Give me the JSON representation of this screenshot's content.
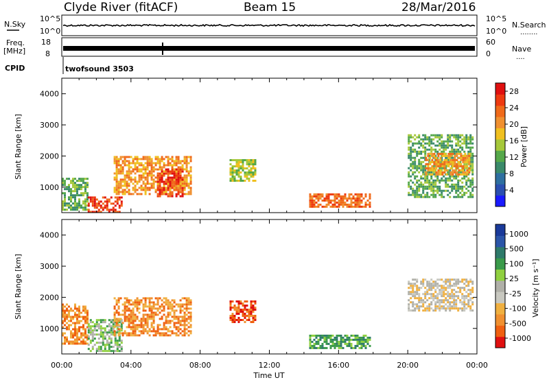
{
  "header": {
    "station": "Clyde River (fitACF)",
    "beam": "Beam 15",
    "date": "28/Mar/2016"
  },
  "strips": {
    "nsky_label": "N.Sky",
    "nsearch_label": "N.Search",
    "nsearch_dots": "........",
    "nsky_ticks": [
      "10^5",
      "10^0"
    ],
    "nsearch_ticks": [
      "10^5",
      "10^0"
    ],
    "freq_label_1": "Freq.",
    "freq_label_2": "[MHz]",
    "freq_ticks": [
      "18",
      "8"
    ],
    "nave_label": "Nave",
    "nave_dots": "....",
    "nave_ticks": [
      "60",
      "0"
    ],
    "cpid_label": "CPID",
    "cpid_value": "twofsound 3503"
  },
  "colors": {
    "power_scale": [
      "#1a1aff",
      "#2b4fb0",
      "#2e6fa0",
      "#3a8a6a",
      "#55a84a",
      "#a6c83a",
      "#f0c020",
      "#f09030",
      "#f06a1a",
      "#ee3a10",
      "#e01010"
    ],
    "velocity_scale": [
      "#e01010",
      "#f06010",
      "#f09030",
      "#f0b040",
      "#c8c8c0",
      "#b0b0a8",
      "#90d040",
      "#3a9a4a",
      "#2e7a6a",
      "#2b55a8",
      "#1a3a9a"
    ]
  },
  "chart_data": [
    {
      "type": "heatmap",
      "title": "",
      "xlabel": "Time UT",
      "ylabel": "Slant Range [km]",
      "xlim": [
        "00:00",
        "24:00"
      ],
      "ylim": [
        180,
        4500
      ],
      "x_ticks": [
        "00:00",
        "04:00",
        "08:00",
        "12:00",
        "16:00",
        "20:00",
        "00:00"
      ],
      "y_ticks": [
        "1000",
        "2000",
        "3000",
        "4000"
      ],
      "colorbar": {
        "label": "Power [dB]",
        "ticks": [
          "4",
          "8",
          "12",
          "16",
          "20",
          "24",
          "28"
        ],
        "range": [
          0,
          30
        ]
      },
      "regions": [
        {
          "t0": 0.0,
          "t1": 1.5,
          "r0": 300,
          "r1": 1300,
          "value": 12
        },
        {
          "t0": 1.5,
          "t1": 3.5,
          "r0": 200,
          "r1": 700,
          "value": 28
        },
        {
          "t0": 3.0,
          "t1": 7.5,
          "r0": 800,
          "r1": 2000,
          "value": 20
        },
        {
          "t0": 5.5,
          "t1": 7.0,
          "r0": 700,
          "r1": 1600,
          "value": 28
        },
        {
          "t0": 9.7,
          "t1": 11.2,
          "r0": 1200,
          "r1": 1900,
          "value": 16
        },
        {
          "t0": 14.3,
          "t1": 17.8,
          "r0": 400,
          "r1": 800,
          "value": 24
        },
        {
          "t0": 20.0,
          "t1": 23.8,
          "r0": 700,
          "r1": 2700,
          "value": 12
        },
        {
          "t0": 21.0,
          "t1": 23.5,
          "r0": 1400,
          "r1": 2100,
          "value": 20
        }
      ]
    },
    {
      "type": "heatmap",
      "title": "",
      "xlabel": "Time UT",
      "ylabel": "Slant Range [km]",
      "xlim": [
        "00:00",
        "24:00"
      ],
      "ylim": [
        180,
        4500
      ],
      "x_ticks": [
        "00:00",
        "04:00",
        "08:00",
        "12:00",
        "16:00",
        "20:00",
        "00:00"
      ],
      "y_ticks": [
        "1000",
        "2000",
        "3000",
        "4000"
      ],
      "colorbar": {
        "label": "Velocity [m s⁻¹]",
        "ticks": [
          "1000",
          "500",
          "100",
          "25",
          "-25",
          "-100",
          "-500",
          "-1000"
        ]
      },
      "regions": [
        {
          "t0": 0.0,
          "t1": 1.5,
          "r0": 500,
          "r1": 1800,
          "value": -100
        },
        {
          "t0": 1.5,
          "t1": 3.5,
          "r0": 300,
          "r1": 1300,
          "value": 100
        },
        {
          "t0": 3.0,
          "t1": 7.5,
          "r0": 800,
          "r1": 2000,
          "value": -100
        },
        {
          "t0": 9.7,
          "t1": 11.2,
          "r0": 1200,
          "r1": 1900,
          "value": -500
        },
        {
          "t0": 14.3,
          "t1": 17.8,
          "r0": 400,
          "r1": 800,
          "value": 500
        },
        {
          "t0": 20.0,
          "t1": 23.8,
          "r0": 1600,
          "r1": 2600,
          "value": 0
        }
      ]
    }
  ]
}
